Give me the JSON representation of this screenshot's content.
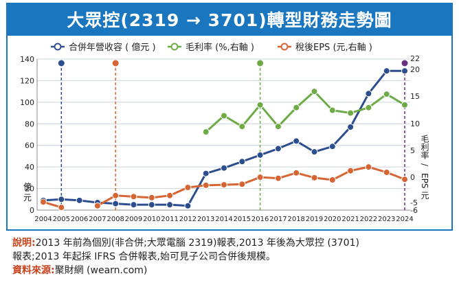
{
  "title": "大眾控(2319 → 3701)轉型財務走勢圖",
  "legend": {
    "revenue": "合併年營收容 ( 億元 )",
    "margin": "毛利率 (%,右軸 )",
    "eps": "稅後EPS (元,右軸 )"
  },
  "left_axis_label": "億元",
  "right_axis_label_top": "毛利率",
  "right_axis_label_bottom": "EPS 元",
  "right_axis_sep": "/",
  "colors": {
    "revenue": "#2c4e8e",
    "margin": "#6cab45",
    "eps": "#d76433",
    "accent": "#1a76bf",
    "highlight": "#6a2f7e"
  },
  "chart_data": {
    "type": "line",
    "x": [
      "2004",
      "2005",
      "2006",
      "2007",
      "2008",
      "2009",
      "2010",
      "2011",
      "2012",
      "2013",
      "2014",
      "2015",
      "2016",
      "2017",
      "2018",
      "2019",
      "2020",
      "2021",
      "2022",
      "2023",
      "2024"
    ],
    "y_left": {
      "ticks": [
        0,
        20,
        40,
        60,
        80,
        100,
        120,
        140
      ],
      "range": [
        0,
        140
      ]
    },
    "y_right": {
      "ticks": [
        "-6",
        "-5",
        "0",
        "5",
        "10",
        "15",
        "20",
        "22"
      ],
      "range": [
        -6,
        22
      ]
    },
    "series": [
      {
        "name": "合併年營收容 ( 億元 )",
        "axis": "left",
        "values": [
          9,
          10,
          9,
          7,
          6,
          5,
          5,
          5,
          4,
          34,
          39,
          45,
          51,
          57,
          64,
          54,
          59,
          77,
          108,
          129,
          129
        ]
      },
      {
        "name": "毛利率 (%,右軸 )",
        "axis": "right",
        "values": [
          null,
          null,
          null,
          null,
          null,
          null,
          null,
          null,
          null,
          8.5,
          11.5,
          9.5,
          13.5,
          9.5,
          13,
          16,
          12.5,
          12,
          13,
          15.5,
          13.5
        ]
      },
      {
        "name": "稅後EPS (元,右軸 )",
        "axis": "right",
        "values": [
          -4.5,
          -5.5,
          null,
          -5.2,
          -3.3,
          -3.5,
          -3.7,
          -3.3,
          -1.8,
          -1.4,
          -1.3,
          -1.2,
          0.1,
          -0.1,
          0.9,
          0.0,
          -0.4,
          1.3,
          2.0,
          1.0,
          -0.3
        ]
      }
    ],
    "markers": [
      {
        "year": "2005",
        "color": "#2c4e8e"
      },
      {
        "year": "2008",
        "color": "#d76433"
      },
      {
        "year": "2016",
        "color": "#6cab45"
      },
      {
        "year": "2024",
        "color": "#6a2f7e"
      }
    ]
  },
  "note": {
    "label": "說明:",
    "line1": "2013 年前為個別(非合併;大眾電腦 2319)報表,2013 年後為大眾控 (3701)",
    "line2": "報表;2013 年起採 IFRS 合併報表,始可見子公司合併後規模。"
  },
  "source": {
    "label": "資料來源:",
    "text": "聚財網 (wearn.com)"
  }
}
